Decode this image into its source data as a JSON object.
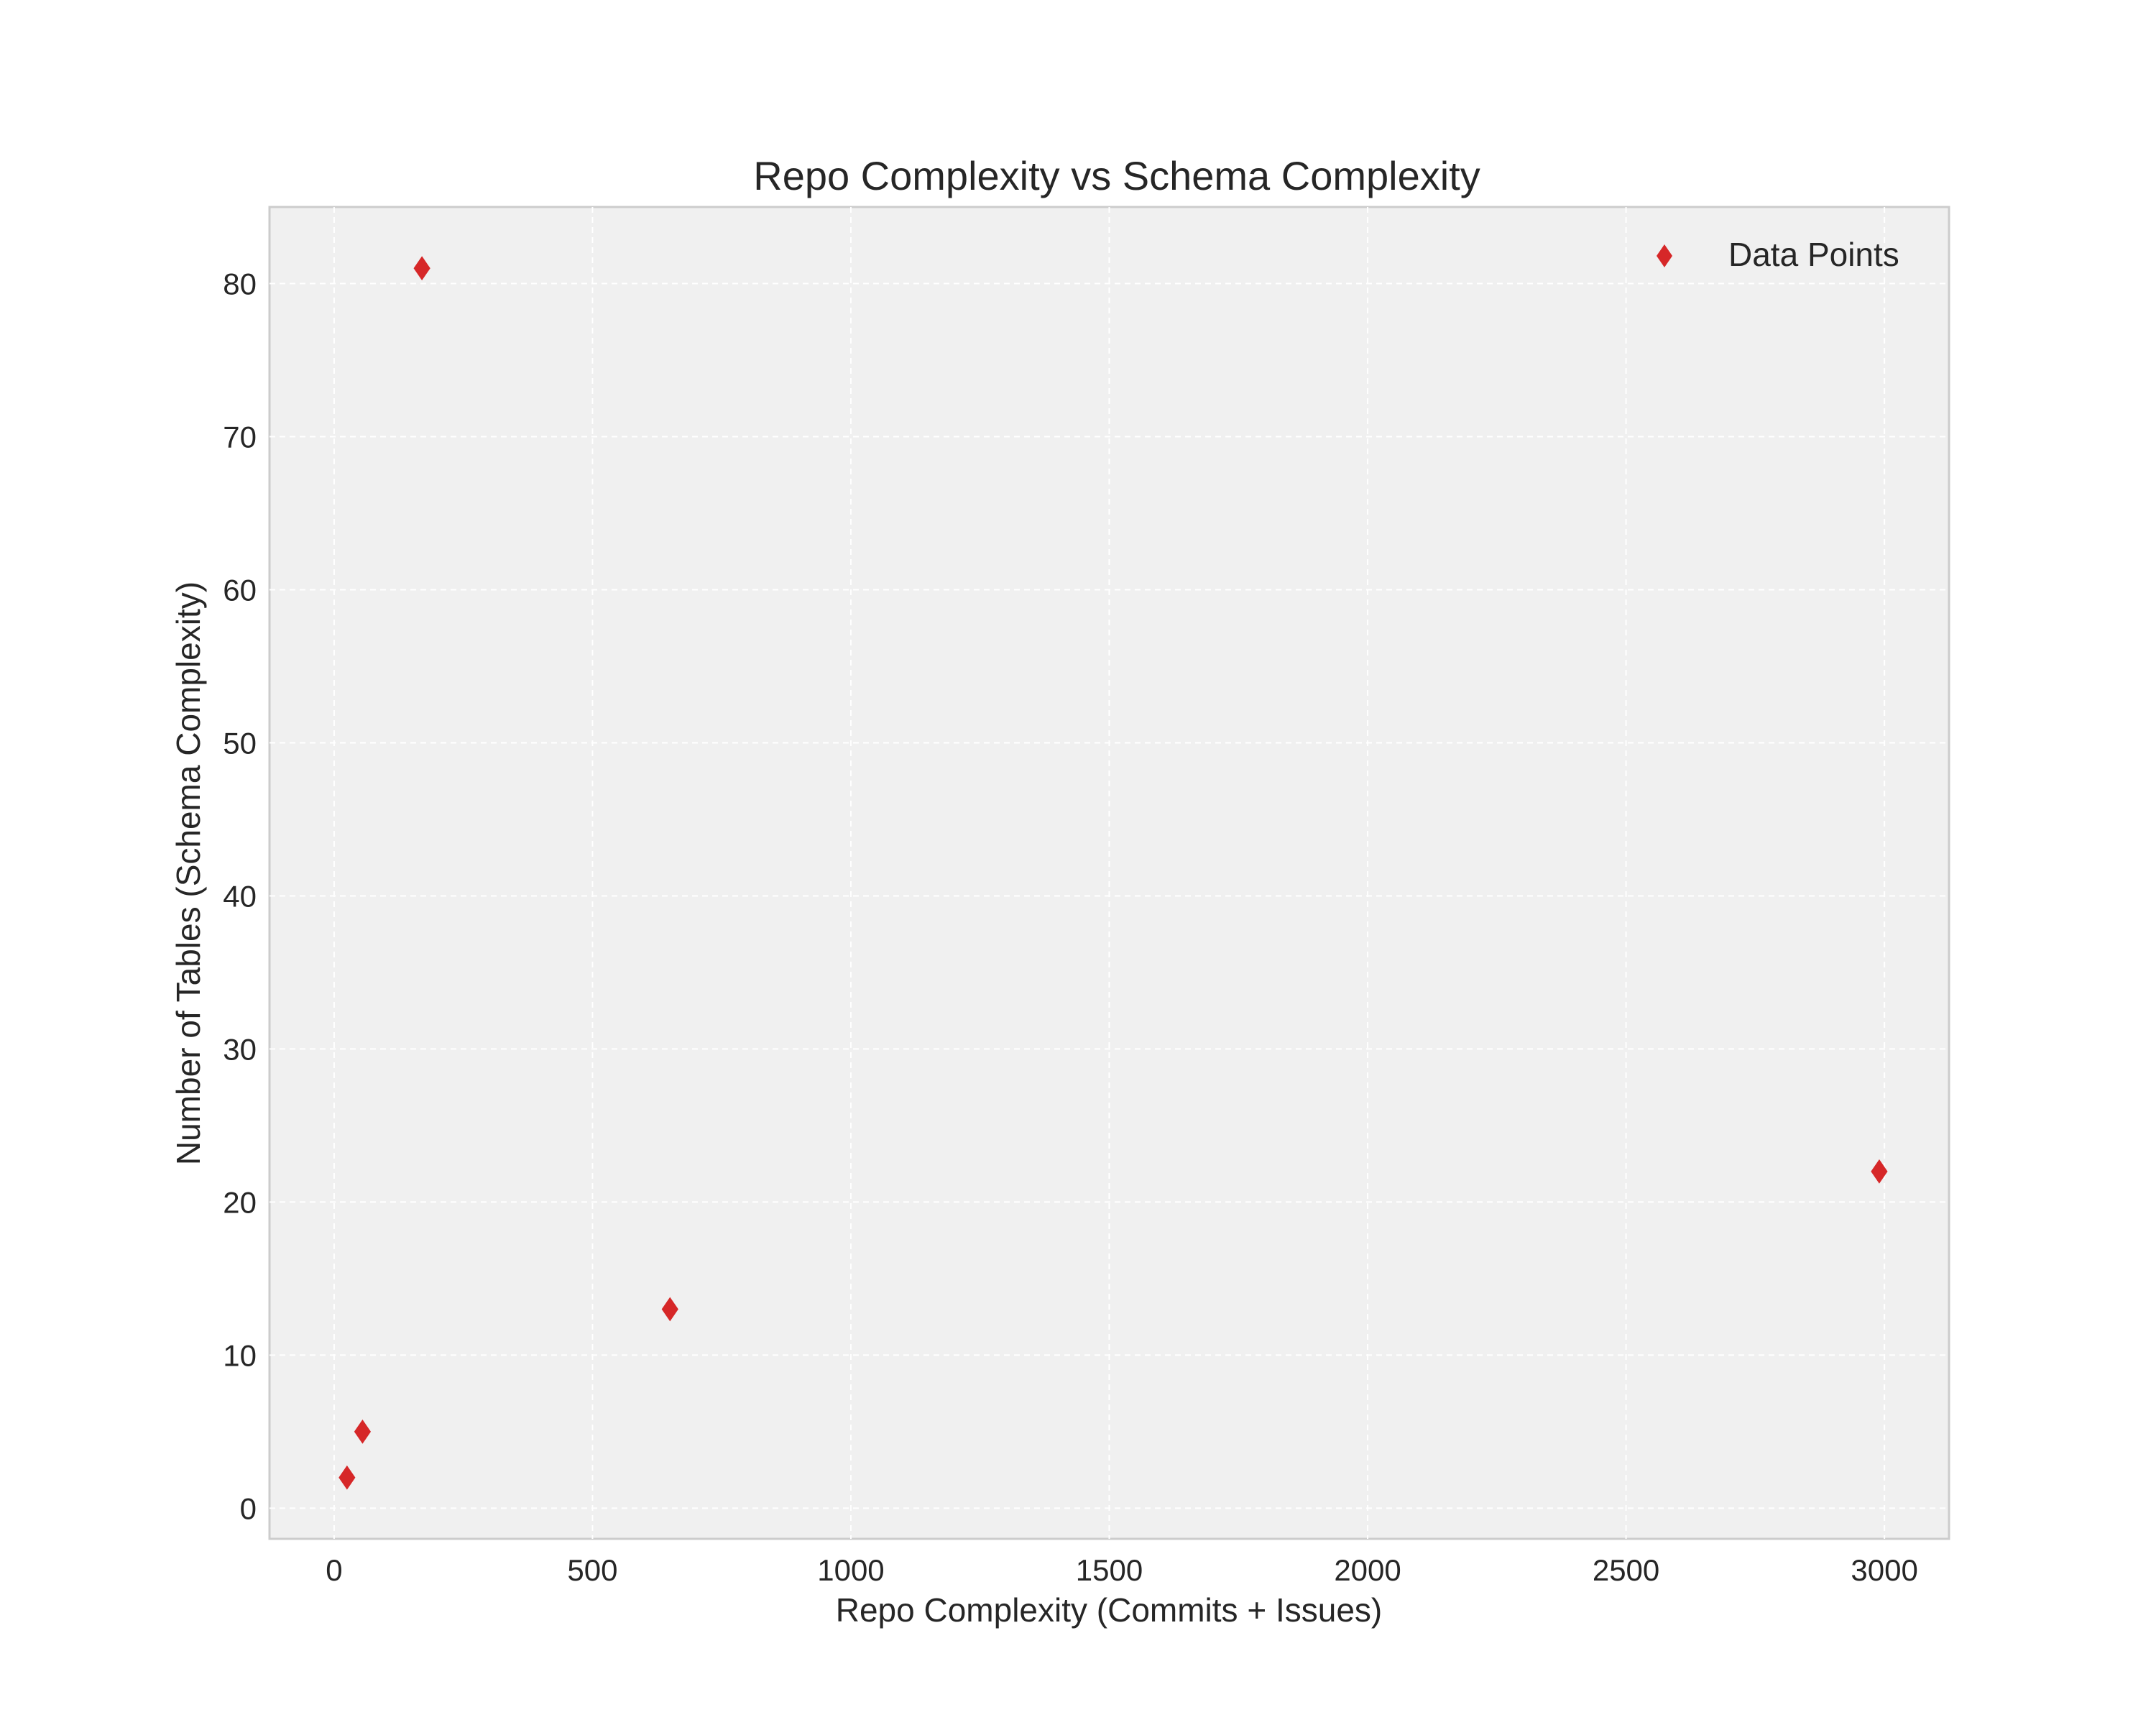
{
  "chart_data": {
    "type": "scatter",
    "title": "Repo Complexity vs Schema Complexity",
    "xlabel": "Repo Complexity (Commits + Issues)",
    "ylabel": "Number of Tables (Schema Complexity)",
    "xlim": [
      -125,
      3125
    ],
    "ylim": [
      -2,
      85
    ],
    "xticks": [
      0,
      500,
      1000,
      1500,
      2000,
      2500,
      3000
    ],
    "yticks": [
      0,
      10,
      20,
      30,
      40,
      50,
      60,
      70,
      80
    ],
    "grid": true,
    "legend_position": "top-right",
    "marker": "diamond",
    "series": [
      {
        "name": "Data Points",
        "color": "#d62728",
        "points": [
          {
            "x": 25,
            "y": 2
          },
          {
            "x": 55,
            "y": 5
          },
          {
            "x": 170,
            "y": 81
          },
          {
            "x": 650,
            "y": 13
          },
          {
            "x": 2990,
            "y": 22
          }
        ]
      }
    ]
  }
}
